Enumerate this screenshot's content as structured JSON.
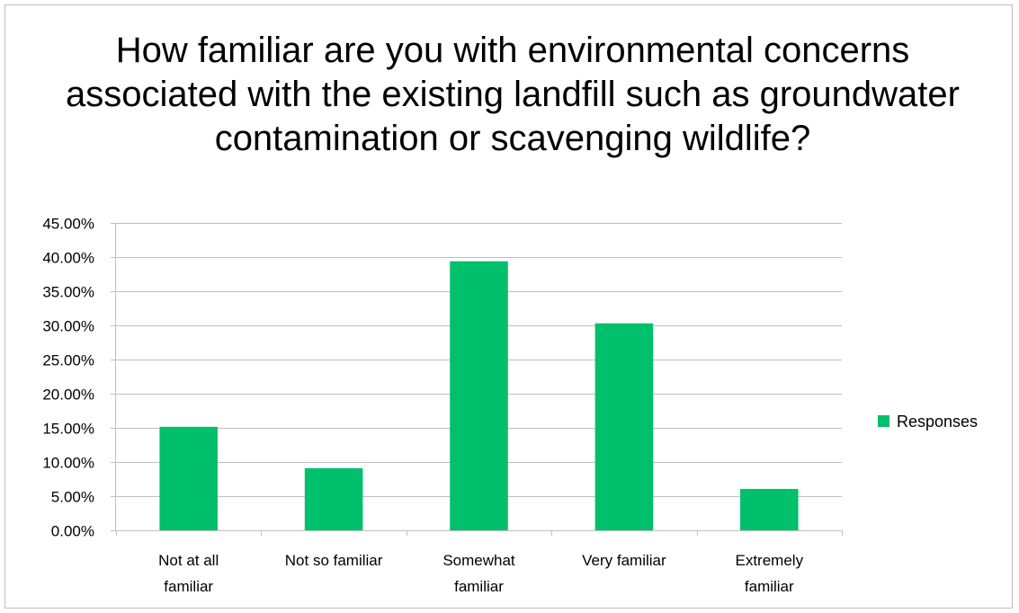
{
  "chart_data": {
    "type": "bar",
    "title": "How familiar are you with environmental concerns associated with the existing landfill such as groundwater contamination or scavenging wildlife?",
    "categories": [
      [
        "Not at all",
        "familiar"
      ],
      [
        "Not so familiar"
      ],
      [
        "Somewhat",
        "familiar"
      ],
      [
        "Very familiar"
      ],
      [
        "Extremely",
        "familiar"
      ]
    ],
    "series": [
      {
        "name": "Responses",
        "values": [
          0.1515,
          0.0909,
          0.3939,
          0.303,
          0.0606
        ],
        "color": "#00c06b"
      }
    ],
    "ylim": [
      0,
      0.45
    ],
    "yticks": [
      "0.00%",
      "5.00%",
      "10.00%",
      "15.00%",
      "20.00%",
      "25.00%",
      "30.00%",
      "35.00%",
      "40.00%",
      "45.00%"
    ],
    "grid": true,
    "legend": "right"
  }
}
